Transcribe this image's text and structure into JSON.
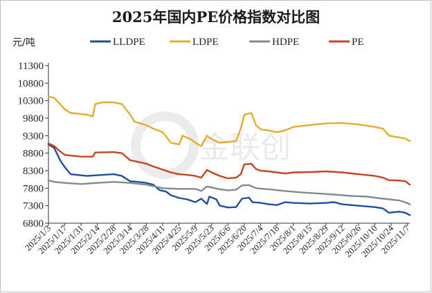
{
  "chart_data": {
    "type": "line",
    "title": "2025年国内PE价格指数对比图",
    "ylabel": "元/吨",
    "xlabel": "",
    "ylim": [
      6800,
      11300
    ],
    "yticks": [
      6800,
      7300,
      7800,
      8300,
      8800,
      9300,
      9800,
      10300,
      10800,
      11300
    ],
    "xtick_labels": [
      "2025/1/3",
      "2025/1/17",
      "2025/1/31",
      "2025/2/14",
      "2025/2/28",
      "2025/3/14",
      "2025/3/28",
      "2025/4/11",
      "2025/4/25",
      "2025/5/9",
      "2025/5/23",
      "2025/6/6",
      "2025/6/20",
      "2025/7/4",
      "2025/7/18",
      "2025/8/1",
      "2025/8/15",
      "2025/8/29",
      "2025/9/12",
      "2025/9/26",
      "2025/10/10",
      "2025/10/24",
      "2025/11/7"
    ],
    "legend_position": "top",
    "grid": false,
    "watermark": "金联创",
    "series": [
      {
        "name": "LLDPE",
        "color": "#1f4ea0",
        "points": [
          [
            "2025/1/3",
            9050
          ],
          [
            "2025/1/8",
            8950
          ],
          [
            "2025/1/13",
            8600
          ],
          [
            "2025/1/17",
            8400
          ],
          [
            "2025/1/22",
            8200
          ],
          [
            "2025/2/5",
            8150
          ],
          [
            "2025/2/14",
            8170
          ],
          [
            "2025/2/28",
            8200
          ],
          [
            "2025/3/7",
            8150
          ],
          [
            "2025/3/14",
            8000
          ],
          [
            "2025/3/21",
            7980
          ],
          [
            "2025/3/28",
            7950
          ],
          [
            "2025/4/3",
            7900
          ],
          [
            "2025/4/8",
            7750
          ],
          [
            "2025/4/14",
            7700
          ],
          [
            "2025/4/18",
            7600
          ],
          [
            "2025/4/25",
            7520
          ],
          [
            "2025/5/2",
            7480
          ],
          [
            "2025/5/9",
            7400
          ],
          [
            "2025/5/14",
            7500
          ],
          [
            "2025/5/19",
            7350
          ],
          [
            "2025/5/21",
            7560
          ],
          [
            "2025/5/27",
            7480
          ],
          [
            "2025/5/30",
            7300
          ],
          [
            "2025/6/6",
            7250
          ],
          [
            "2025/6/13",
            7260
          ],
          [
            "2025/6/18",
            7500
          ],
          [
            "2025/6/24",
            7530
          ],
          [
            "2025/6/27",
            7400
          ],
          [
            "2025/7/4",
            7380
          ],
          [
            "2025/7/11",
            7340
          ],
          [
            "2025/7/18",
            7320
          ],
          [
            "2025/7/25",
            7400
          ],
          [
            "2025/8/1",
            7380
          ],
          [
            "2025/8/15",
            7360
          ],
          [
            "2025/8/29",
            7380
          ],
          [
            "2025/9/5",
            7400
          ],
          [
            "2025/9/12",
            7340
          ],
          [
            "2025/9/26",
            7300
          ],
          [
            "2025/10/10",
            7260
          ],
          [
            "2025/10/17",
            7220
          ],
          [
            "2025/10/22",
            7100
          ],
          [
            "2025/10/31",
            7130
          ],
          [
            "2025/11/5",
            7100
          ],
          [
            "2025/11/9",
            7030
          ]
        ]
      },
      {
        "name": "LDPE",
        "color": "#e3ac2c",
        "points": [
          [
            "2025/1/3",
            10420
          ],
          [
            "2025/1/8",
            10380
          ],
          [
            "2025/1/13",
            10200
          ],
          [
            "2025/1/17",
            10050
          ],
          [
            "2025/1/22",
            9950
          ],
          [
            "2025/2/5",
            9900
          ],
          [
            "2025/2/10",
            9850
          ],
          [
            "2025/2/12",
            10200
          ],
          [
            "2025/2/18",
            10250
          ],
          [
            "2025/2/28",
            10250
          ],
          [
            "2025/3/7",
            10200
          ],
          [
            "2025/3/14",
            9900
          ],
          [
            "2025/3/18",
            9700
          ],
          [
            "2025/3/28",
            9600
          ],
          [
            "2025/4/3",
            9500
          ],
          [
            "2025/4/11",
            9400
          ],
          [
            "2025/4/18",
            9100
          ],
          [
            "2025/4/25",
            9050
          ],
          [
            "2025/4/28",
            9300
          ],
          [
            "2025/5/5",
            9200
          ],
          [
            "2025/5/9",
            9100
          ],
          [
            "2025/5/14",
            9000
          ],
          [
            "2025/5/19",
            9300
          ],
          [
            "2025/5/23",
            9200
          ],
          [
            "2025/5/30",
            9100
          ],
          [
            "2025/6/6",
            9120
          ],
          [
            "2025/6/13",
            9150
          ],
          [
            "2025/6/17",
            9500
          ],
          [
            "2025/6/20",
            9900
          ],
          [
            "2025/6/26",
            9950
          ],
          [
            "2025/6/30",
            9600
          ],
          [
            "2025/7/4",
            9480
          ],
          [
            "2025/7/11",
            9450
          ],
          [
            "2025/7/18",
            9400
          ],
          [
            "2025/7/25",
            9450
          ],
          [
            "2025/8/1",
            9550
          ],
          [
            "2025/8/15",
            9600
          ],
          [
            "2025/8/29",
            9650
          ],
          [
            "2025/9/12",
            9660
          ],
          [
            "2025/9/26",
            9620
          ],
          [
            "2025/10/10",
            9550
          ],
          [
            "2025/10/17",
            9500
          ],
          [
            "2025/10/22",
            9300
          ],
          [
            "2025/10/31",
            9250
          ],
          [
            "2025/11/5",
            9220
          ],
          [
            "2025/11/9",
            9140
          ]
        ]
      },
      {
        "name": "HDPE",
        "color": "#7f8c8d",
        "points": [
          [
            "2025/1/3",
            8020
          ],
          [
            "2025/1/8",
            7980
          ],
          [
            "2025/1/17",
            7950
          ],
          [
            "2025/1/31",
            7920
          ],
          [
            "2025/2/14",
            7950
          ],
          [
            "2025/2/28",
            7980
          ],
          [
            "2025/3/14",
            7950
          ],
          [
            "2025/3/28",
            7900
          ],
          [
            "2025/4/11",
            7800
          ],
          [
            "2025/4/25",
            7780
          ],
          [
            "2025/5/9",
            7780
          ],
          [
            "2025/5/14",
            7720
          ],
          [
            "2025/5/19",
            7850
          ],
          [
            "2025/5/23",
            7820
          ],
          [
            "2025/5/30",
            7770
          ],
          [
            "2025/6/6",
            7740
          ],
          [
            "2025/6/13",
            7760
          ],
          [
            "2025/6/18",
            7880
          ],
          [
            "2025/6/24",
            7890
          ],
          [
            "2025/6/30",
            7800
          ],
          [
            "2025/7/11",
            7770
          ],
          [
            "2025/7/25",
            7720
          ],
          [
            "2025/8/8",
            7680
          ],
          [
            "2025/8/22",
            7650
          ],
          [
            "2025/9/5",
            7620
          ],
          [
            "2025/9/19",
            7580
          ],
          [
            "2025/10/3",
            7560
          ],
          [
            "2025/10/17",
            7500
          ],
          [
            "2025/10/31",
            7450
          ],
          [
            "2025/11/5",
            7400
          ],
          [
            "2025/11/9",
            7340
          ]
        ]
      },
      {
        "name": "PE",
        "color": "#c5441c",
        "points": [
          [
            "2025/1/3",
            9080
          ],
          [
            "2025/1/8",
            9000
          ],
          [
            "2025/1/13",
            8850
          ],
          [
            "2025/1/17",
            8750
          ],
          [
            "2025/1/31",
            8700
          ],
          [
            "2025/2/10",
            8700
          ],
          [
            "2025/2/12",
            8820
          ],
          [
            "2025/2/28",
            8830
          ],
          [
            "2025/3/7",
            8800
          ],
          [
            "2025/3/14",
            8600
          ],
          [
            "2025/3/21",
            8550
          ],
          [
            "2025/3/28",
            8500
          ],
          [
            "2025/4/3",
            8420
          ],
          [
            "2025/4/11",
            8330
          ],
          [
            "2025/4/18",
            8250
          ],
          [
            "2025/4/25",
            8200
          ],
          [
            "2025/5/2",
            8180
          ],
          [
            "2025/5/9",
            8150
          ],
          [
            "2025/5/14",
            8100
          ],
          [
            "2025/5/19",
            8320
          ],
          [
            "2025/5/23",
            8250
          ],
          [
            "2025/5/30",
            8150
          ],
          [
            "2025/6/6",
            8080
          ],
          [
            "2025/6/13",
            8100
          ],
          [
            "2025/6/17",
            8200
          ],
          [
            "2025/6/20",
            8480
          ],
          [
            "2025/6/26",
            8500
          ],
          [
            "2025/6/30",
            8350
          ],
          [
            "2025/7/4",
            8300
          ],
          [
            "2025/7/11",
            8280
          ],
          [
            "2025/7/18",
            8250
          ],
          [
            "2025/7/25",
            8220
          ],
          [
            "2025/8/1",
            8250
          ],
          [
            "2025/8/15",
            8260
          ],
          [
            "2025/8/29",
            8280
          ],
          [
            "2025/9/12",
            8250
          ],
          [
            "2025/9/26",
            8200
          ],
          [
            "2025/10/10",
            8150
          ],
          [
            "2025/10/17",
            8100
          ],
          [
            "2025/10/22",
            8030
          ],
          [
            "2025/10/31",
            8020
          ],
          [
            "2025/11/5",
            8000
          ],
          [
            "2025/11/9",
            7900
          ]
        ]
      }
    ]
  }
}
